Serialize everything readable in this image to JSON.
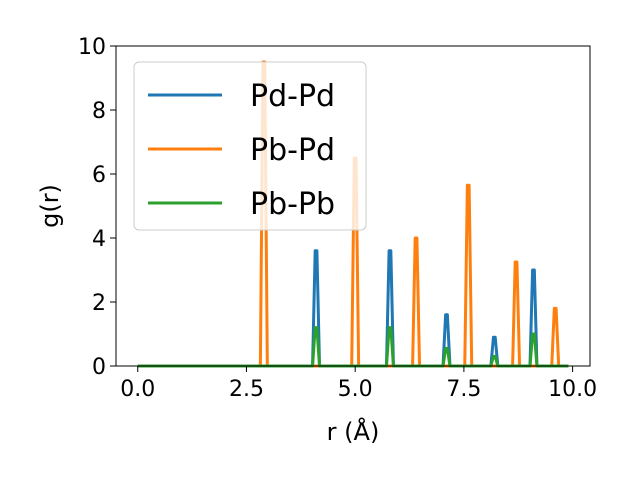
{
  "chart_data": {
    "type": "line",
    "xlabel": "r (Å)",
    "ylabel": "g(r)",
    "xlim": [
      -0.5,
      10.4
    ],
    "ylim": [
      0,
      10
    ],
    "xticks": [
      "0.0",
      "2.5",
      "5.0",
      "7.5",
      "10.0"
    ],
    "xtick_values": [
      0,
      2.5,
      5,
      7.5,
      10
    ],
    "yticks": [
      "0",
      "2",
      "4",
      "6",
      "8",
      "10"
    ],
    "ytick_values": [
      0,
      2,
      4,
      6,
      8,
      10
    ],
    "legend_position": "top-left",
    "x_range": [
      0,
      9.9
    ],
    "series": [
      {
        "name": "Pd-Pd",
        "color": "#1f77b4",
        "peaks": [
          [
            4.1,
            3.6
          ],
          [
            5.8,
            3.6
          ],
          [
            7.1,
            1.6
          ],
          [
            8.2,
            0.9
          ],
          [
            9.1,
            3.0
          ]
        ]
      },
      {
        "name": "Pb-Pd",
        "color": "#ff7f0e",
        "peaks": [
          [
            2.9,
            9.5
          ],
          [
            5.0,
            6.5
          ],
          [
            6.4,
            4.0
          ],
          [
            7.6,
            5.65
          ],
          [
            8.7,
            3.25
          ],
          [
            9.6,
            1.8
          ]
        ]
      },
      {
        "name": "Pb-Pb",
        "color": "#2ca02c",
        "peaks": [
          [
            4.1,
            1.2
          ],
          [
            5.8,
            1.2
          ],
          [
            7.1,
            0.55
          ],
          [
            8.2,
            0.3
          ],
          [
            9.1,
            1.0
          ]
        ]
      }
    ]
  }
}
